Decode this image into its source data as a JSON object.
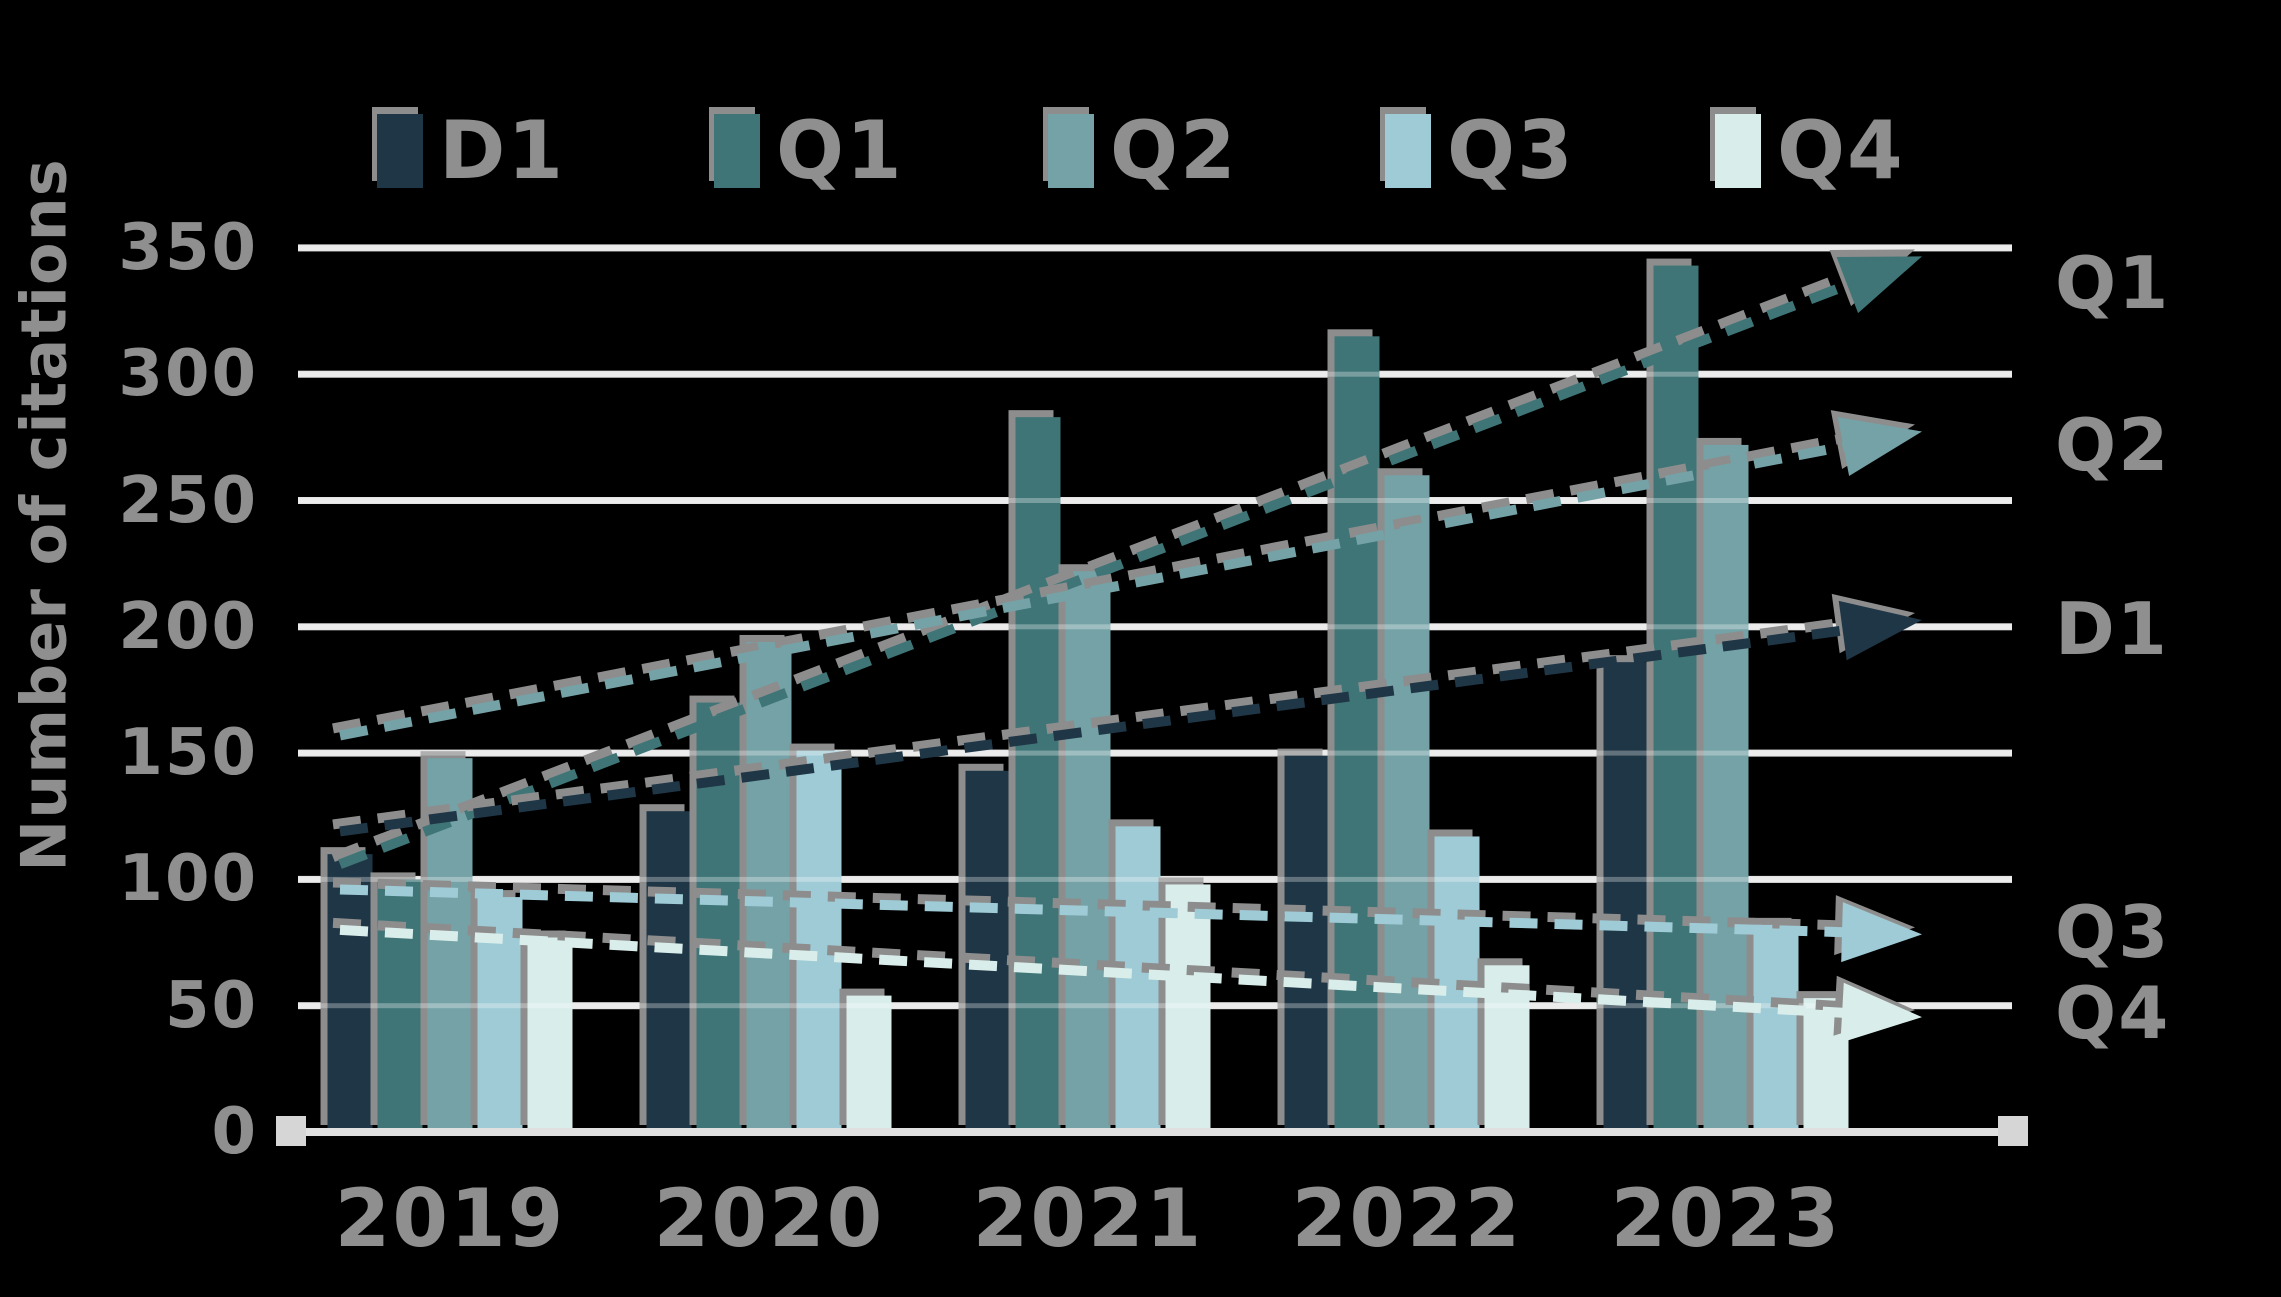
{
  "background_color": "#000000",
  "text_color": "#8f8f8f",
  "gridline_color": "#e4e4e4",
  "shadow_color": "#8d8d8d",
  "y_axis_title": "Number of citations",
  "legend": {
    "position": "top",
    "items": [
      {
        "label": "D1",
        "color": "#1f3646"
      },
      {
        "label": "Q1",
        "color": "#3f7577"
      },
      {
        "label": "Q2",
        "color": "#74a2a6"
      },
      {
        "label": "Q3",
        "color": "#9ecbd6"
      },
      {
        "label": "Q4",
        "color": "#d9eeeb"
      }
    ]
  },
  "chart_data": {
    "type": "bar",
    "title": "",
    "xlabel": "",
    "ylabel": "Number of citations",
    "categories": [
      "2019",
      "2020",
      "2021",
      "2022",
      "2023"
    ],
    "series": [
      {
        "name": "D1",
        "color": "#1f3646",
        "values": [
          110,
          127,
          143,
          149,
          186
        ]
      },
      {
        "name": "Q1",
        "color": "#3f7577",
        "values": [
          100,
          170,
          283,
          315,
          343
        ]
      },
      {
        "name": "Q2",
        "color": "#74a2a6",
        "values": [
          148,
          194,
          222,
          260,
          272
        ]
      },
      {
        "name": "Q3",
        "color": "#9ecbd6",
        "values": [
          93,
          151,
          121,
          117,
          82
        ]
      },
      {
        "name": "Q4",
        "color": "#d9eeeb",
        "values": [
          77,
          54,
          98,
          66,
          53
        ]
      }
    ],
    "trend_lines": [
      {
        "label": "Q1",
        "color": "#3f7577",
        "start_value": 106,
        "end_value": 336,
        "style": "dashed-arrow"
      },
      {
        "label": "Q2",
        "color": "#74a2a6",
        "start_value": 157,
        "end_value": 272,
        "style": "dashed-arrow"
      },
      {
        "label": "D1",
        "color": "#1f3646",
        "start_value": 119,
        "end_value": 199,
        "style": "dashed-arrow"
      },
      {
        "label": "Q3",
        "color": "#9ecbd6",
        "start_value": 96,
        "end_value": 79,
        "style": "dashed-arrow"
      },
      {
        "label": "Q4",
        "color": "#d9eeeb",
        "start_value": 80,
        "end_value": 47,
        "style": "dashed-arrow"
      }
    ],
    "yticks": [
      0,
      50,
      100,
      150,
      200,
      250,
      300,
      350
    ],
    "ylim": [
      0,
      380
    ],
    "grid": true,
    "legend_position": "top"
  }
}
